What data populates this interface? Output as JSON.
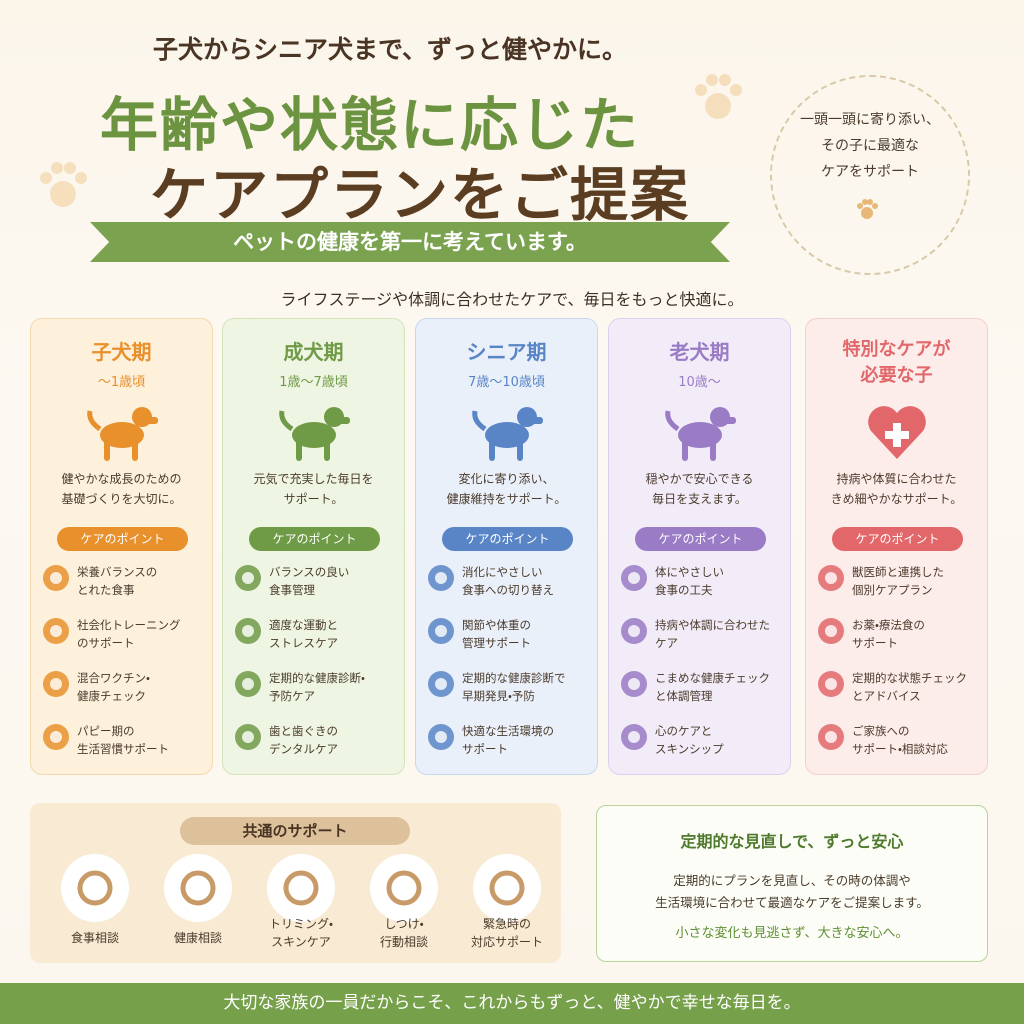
{
  "header": {
    "tagline": "子犬からシニア犬まで、ずっと健やかに。",
    "title_line1": "年齢や状態に応じた",
    "title_line2": "ケアプランをご提案",
    "ribbon": "ペットの健康を第一に考えています。",
    "side_note": "一頭一頭に寄り添い、\nその子に最適な\nケアをサポート",
    "intro": "ライフステージや体調に合わせたケアで、毎日をもっと快適に。"
  },
  "stages": [
    {
      "name": "子犬期",
      "age": "〜1歳頃",
      "description": "健やかな成長のための\n基礎づくりを大切に。",
      "points_label": "ケアのポイント",
      "points": [
        "栄養バランスの\nとれた食事",
        "社会化トレーニング\nのサポート",
        "混合ワクチン・\n健康チェック",
        "パピー期の\n生活習慣サポート"
      ]
    },
    {
      "name": "成犬期",
      "age": "1歳〜7歳頃",
      "description": "元気で充実した毎日を\nサポート。",
      "points_label": "ケアのポイント",
      "points": [
        "バランスの良い\n食事管理",
        "適度な運動と\nストレスケア",
        "定期的な健康診断・\n予防ケア",
        "歯と歯ぐきの\nデンタルケア"
      ]
    },
    {
      "name": "シニア期",
      "age": "7歳〜10歳頃",
      "description": "変化に寄り添い、\n健康維持をサポート。",
      "points_label": "ケアのポイント",
      "points": [
        "消化にやさしい\n食事への切り替え",
        "関節や体重の\n管理サポート",
        "定期的な健康診断で\n早期発見・予防",
        "快適な生活環境の\nサポート"
      ]
    },
    {
      "name": "老犬期",
      "age": "10歳〜",
      "description": "穏やかで安心できる\n毎日を支えます。",
      "points_label": "ケアのポイント",
      "points": [
        "体にやさしい\n食事の工夫",
        "持病や体調に合わせた\nケア",
        "こまめな健康チェック\nと体調管理",
        "心のケアと\nスキンシップ"
      ]
    },
    {
      "name": "特別なケアが\n必要な子",
      "age": null,
      "description": "持病や体質に合わせた\nきめ細やかなサポート。",
      "points_label": "ケアのポイント",
      "points": [
        "獣医師と連携した\n個別ケアプラン",
        "お薬・療法食の\nサポート",
        "定期的な状態チェック\nとアドバイス",
        "ご家族への\nサポート・相談対応"
      ]
    }
  ],
  "common": {
    "title": "共通のサポート",
    "items": [
      "食事相談",
      "健康相談",
      "トリミング・\nスキンケア",
      "しつけ・\n行動相談",
      "緊急時の\n対応サポート"
    ]
  },
  "review": {
    "title": "定期的な見直しで、ずっと安心",
    "body": "定期的にプランを見直し、その時の体調や\n生活環境に合わせて最適なケアをご提案します。",
    "closing": "小さな変化も見逃さず、大きな安心へ。"
  },
  "footer": {
    "text": "大切な家族の一員だからこそ、これからもずっと、健やかで幸せな毎日を。"
  }
}
